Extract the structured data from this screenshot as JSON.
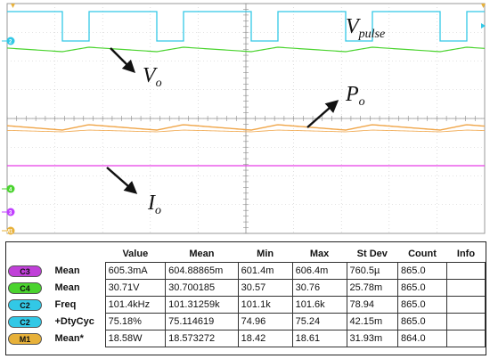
{
  "chart_data": {
    "type": "line",
    "title": "",
    "grid": true,
    "series": [
      {
        "name": "V_pulse",
        "color": "#32c8e6",
        "shape": "pulse"
      },
      {
        "name": "V_o",
        "color": "#4ad32e",
        "shape": "sawtooth"
      },
      {
        "name": "P_o",
        "color": "#f0a64a",
        "shape": "sawtooth"
      },
      {
        "name": "I_o",
        "color": "#e83ee8",
        "shape": "flat"
      }
    ],
    "annotations": [
      {
        "base": "V",
        "sub": "pulse"
      },
      {
        "base": "V",
        "sub": "o"
      },
      {
        "base": "P",
        "sub": "o"
      },
      {
        "base": "I",
        "sub": "o"
      }
    ],
    "channel_markers": [
      {
        "label": "2",
        "color": "#32c8e6"
      },
      {
        "label": "4",
        "color": "#4ad32e"
      },
      {
        "label": "3",
        "color": "#c040ff"
      },
      {
        "label": "M1",
        "color": "#e7b13a"
      }
    ]
  },
  "measurements": {
    "headers": [
      "Value",
      "Mean",
      "Min",
      "Max",
      "St Dev",
      "Count",
      "Info"
    ],
    "rows": [
      {
        "channel": "C3",
        "badge_color": "#c040d8",
        "label": "Mean",
        "cells": [
          "605.3mA",
          "604.88865m",
          "601.4m",
          "606.4m",
          "760.5µ",
          "865.0",
          ""
        ]
      },
      {
        "channel": "C4",
        "badge_color": "#4ad32e",
        "label": "Mean",
        "cells": [
          "30.71V",
          "30.700185",
          "30.57",
          "30.76",
          "25.78m",
          "865.0",
          ""
        ]
      },
      {
        "channel": "C2",
        "badge_color": "#32c8e6",
        "label": "Freq",
        "cells": [
          "101.4kHz",
          "101.31259k",
          "101.1k",
          "101.6k",
          "78.94",
          "865.0",
          ""
        ]
      },
      {
        "channel": "C2",
        "badge_color": "#32c8e6",
        "label": "+DtyCyc",
        "cells": [
          "75.18%",
          "75.114619",
          "74.96",
          "75.24",
          "42.15m",
          "865.0",
          ""
        ]
      },
      {
        "channel": "M1",
        "badge_color": "#e7b13a",
        "label": "Mean*",
        "cells": [
          "18.58W",
          "18.573272",
          "18.42",
          "18.61",
          "31.93m",
          "864.0",
          ""
        ]
      }
    ]
  }
}
